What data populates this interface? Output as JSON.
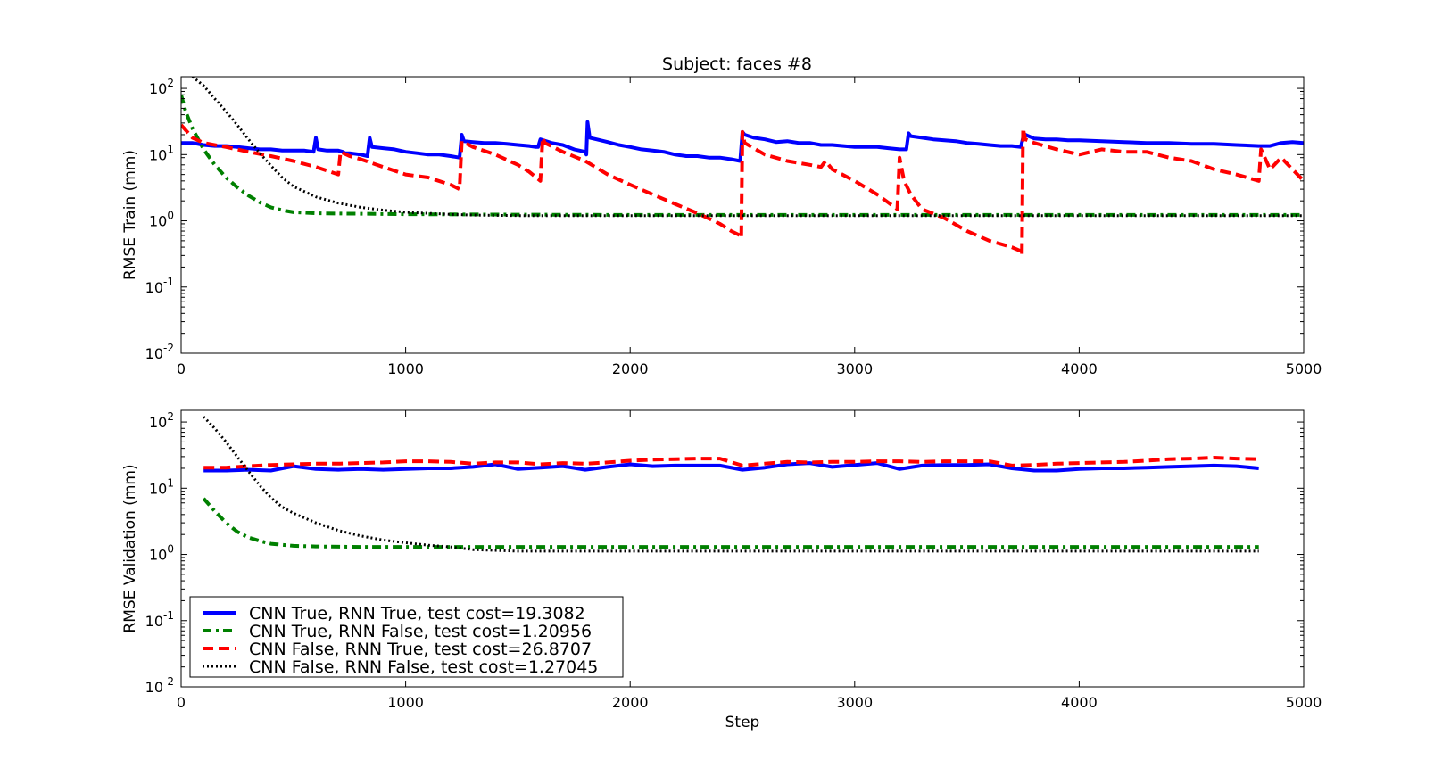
{
  "chart_data": {
    "type": "line",
    "title": "Subject: faces #8",
    "panels": [
      {
        "id": "train",
        "ylabel": "RMSE Train (mm)",
        "xlabel": "",
        "xlim": [
          0,
          5000
        ],
        "ylim": [
          0.01,
          150
        ],
        "yscale": "log",
        "xticks": [
          0,
          1000,
          2000,
          3000,
          4000,
          5000
        ],
        "yticks": [
          {
            "base": "10",
            "exp": "-2",
            "value": 0.01
          },
          {
            "base": "10",
            "exp": "-1",
            "value": 0.1
          },
          {
            "base": "10",
            "exp": "0",
            "value": 1
          },
          {
            "base": "10",
            "exp": "1",
            "value": 10
          },
          {
            "base": "10",
            "exp": "2",
            "value": 100
          }
        ],
        "grid": false,
        "series": [
          {
            "color": "#0000ff",
            "style": "solid",
            "x": [
              0,
              50,
              100,
              150,
              200,
              250,
              300,
              350,
              400,
              450,
              500,
              550,
              590,
              600,
              610,
              650,
              700,
              720,
              730,
              750,
              800,
              830,
              840,
              850,
              900,
              950,
              1000,
              1050,
              1100,
              1150,
              1200,
              1240,
              1250,
              1260,
              1300,
              1350,
              1400,
              1450,
              1500,
              1550,
              1580,
              1590,
              1600,
              1650,
              1700,
              1750,
              1800,
              1805,
              1810,
              1820,
              1850,
              1900,
              1950,
              2000,
              2050,
              2100,
              2150,
              2200,
              2250,
              2300,
              2350,
              2400,
              2450,
              2490,
              2500,
              2510,
              2550,
              2600,
              2650,
              2700,
              2750,
              2800,
              2850,
              2900,
              2950,
              3000,
              3050,
              3100,
              3150,
              3200,
              3230,
              3240,
              3250,
              3300,
              3350,
              3400,
              3450,
              3500,
              3550,
              3600,
              3650,
              3700,
              3740,
              3750,
              3760,
              3800,
              3850,
              3900,
              3950,
              4000,
              4100,
              4200,
              4300,
              4400,
              4500,
              4600,
              4700,
              4800,
              4850,
              4900,
              4950,
              5000
            ],
            "y": [
              15,
              15,
              14,
              13.5,
              13.5,
              13,
              12.5,
              12,
              12,
              11.5,
              11.5,
              11.5,
              11,
              18,
              12,
              11.5,
              11.5,
              11,
              10.5,
              10.5,
              10,
              9.5,
              18,
              13,
              12.5,
              12,
              11,
              10.5,
              10,
              10,
              9.5,
              9,
              20,
              16,
              15.5,
              15,
              15,
              14.5,
              14,
              13.5,
              13,
              13,
              17,
              15,
              14,
              12,
              11,
              10,
              31,
              18,
              17,
              15.5,
              14,
              13,
              12,
              11.5,
              11,
              10,
              9.5,
              9.5,
              9,
              9,
              8.5,
              8,
              22,
              20,
              18,
              17,
              15.5,
              16,
              15,
              15,
              14,
              14,
              13.5,
              13,
              13,
              13,
              12.5,
              12,
              12,
              21,
              19,
              18,
              17,
              16.5,
              16,
              15,
              14.5,
              14,
              13.5,
              13.5,
              13,
              18,
              20,
              17.5,
              17,
              17,
              16.5,
              16.5,
              16,
              15.5,
              15,
              15,
              14.5,
              14.5,
              14,
              13.5,
              13.5,
              15,
              15.5,
              15
            ]
          },
          {
            "color": "#008000",
            "style": "dashdot",
            "x": [
              0,
              20,
              50,
              100,
              150,
              200,
              250,
              300,
              350,
              400,
              450,
              500,
              600,
              800,
              1000,
              1500,
              2000,
              3000,
              4000,
              5000
            ],
            "y": [
              80,
              45,
              25,
              12,
              7,
              4.5,
              3.2,
              2.4,
              1.9,
              1.6,
              1.45,
              1.35,
              1.3,
              1.28,
              1.26,
              1.24,
              1.23,
              1.23,
              1.23,
              1.23
            ]
          },
          {
            "color": "#ff0000",
            "style": "dashed",
            "x": [
              0,
              50,
              100,
              200,
              300,
              400,
              500,
              600,
              700,
              710,
              750,
              800,
              900,
              1000,
              1100,
              1200,
              1240,
              1250,
              1300,
              1400,
              1500,
              1550,
              1600,
              1610,
              1620,
              1700,
              1800,
              1900,
              2000,
              2100,
              2200,
              2300,
              2400,
              2450,
              2490,
              2495,
              2500,
              2510,
              2600,
              2700,
              2800,
              2850,
              2870,
              2900,
              3000,
              3100,
              3190,
              3200,
              3210,
              3220,
              3250,
              3300,
              3400,
              3500,
              3600,
              3700,
              3740,
              3745,
              3750,
              3760,
              3800,
              3900,
              4000,
              4100,
              4200,
              4300,
              4400,
              4500,
              4600,
              4700,
              4800,
              4810,
              4850,
              4900,
              4950,
              5000
            ],
            "y": [
              28,
              18,
              15,
              13,
              11,
              9.5,
              8,
              6.5,
              5,
              11,
              9.5,
              8.5,
              6.5,
              5,
              4.5,
              3.5,
              3,
              16,
              13,
              10,
              7,
              5.5,
              4,
              18,
              15,
              11,
              8,
              5,
              3.5,
              2.5,
              1.8,
              1.3,
              0.9,
              0.7,
              0.6,
              0.55,
              22,
              15,
              10,
              8,
              7,
              6.5,
              8,
              6,
              4,
              2.5,
              1.5,
              9,
              6,
              4,
              2.5,
              1.5,
              1.1,
              0.7,
              0.5,
              0.4,
              0.35,
              0.3,
              25,
              17,
              15,
              12,
              10,
              12,
              11,
              11,
              9,
              8,
              6,
              5,
              4,
              12,
              6,
              9,
              6,
              4
            ]
          },
          {
            "color": "#000000",
            "style": "dotted",
            "x": [
              50,
              100,
              150,
              200,
              250,
              300,
              350,
              400,
              450,
              500,
              600,
              700,
              800,
              900,
              1000,
              1100,
              1200,
              1300,
              1500,
              2000,
              3000,
              4000,
              5000
            ],
            "y": [
              150,
              110,
              70,
              45,
              28,
              17,
              10.5,
              6.8,
              4.5,
              3.3,
              2.3,
              1.85,
              1.6,
              1.45,
              1.35,
              1.3,
              1.25,
              1.22,
              1.2,
              1.2,
              1.2,
              1.2,
              1.2
            ]
          }
        ]
      },
      {
        "id": "validation",
        "ylabel": "RMSE Validation (mm)",
        "xlabel": "Step",
        "xlim": [
          0,
          5000
        ],
        "ylim": [
          0.01,
          150
        ],
        "yscale": "log",
        "xticks": [
          0,
          1000,
          2000,
          3000,
          4000,
          5000
        ],
        "yticks": [
          {
            "base": "10",
            "exp": "-2",
            "value": 0.01
          },
          {
            "base": "10",
            "exp": "-1",
            "value": 0.1
          },
          {
            "base": "10",
            "exp": "0",
            "value": 1
          },
          {
            "base": "10",
            "exp": "1",
            "value": 10
          },
          {
            "base": "10",
            "exp": "2",
            "value": 100
          }
        ],
        "grid": false,
        "legend_position": "lower-left",
        "series": [
          {
            "name": "CNN True, RNN True, test cost=19.3082",
            "color": "#0000ff",
            "style": "solid",
            "x": [
              100,
              200,
              300,
              400,
              500,
              600,
              700,
              800,
              900,
              1000,
              1100,
              1200,
              1300,
              1400,
              1500,
              1600,
              1700,
              1800,
              1900,
              2000,
              2100,
              2200,
              2300,
              2400,
              2500,
              2600,
              2700,
              2800,
              2900,
              3000,
              3100,
              3200,
              3300,
              3400,
              3500,
              3600,
              3700,
              3800,
              3900,
              4000,
              4100,
              4200,
              4300,
              4400,
              4500,
              4600,
              4700,
              4800
            ],
            "y": [
              18.5,
              18.5,
              19,
              18.5,
              21.5,
              19.5,
              19,
              19.5,
              19,
              19.5,
              20,
              20,
              21,
              23,
              19.5,
              20.5,
              21.5,
              19,
              21,
              23,
              21.5,
              22,
              22,
              22,
              19,
              20.5,
              23,
              24,
              21,
              22.5,
              24,
              19.5,
              22,
              22.5,
              22.5,
              23,
              20,
              18.5,
              18.5,
              19.5,
              20,
              20,
              20.5,
              21,
              21.5,
              22,
              21.5,
              20
            ]
          },
          {
            "name": "CNN True, RNN False, test cost=1.20956",
            "color": "#008000",
            "style": "dashdot",
            "x": [
              100,
              150,
              200,
              250,
              300,
              350,
              400,
              500,
              600,
              800,
              1000,
              1500,
              2000,
              3000,
              4000,
              4800
            ],
            "y": [
              7,
              4.5,
              3,
              2.2,
              1.8,
              1.6,
              1.45,
              1.35,
              1.32,
              1.3,
              1.3,
              1.3,
              1.3,
              1.3,
              1.3,
              1.3
            ]
          },
          {
            "name": "CNN False, RNN True, test cost=26.8707",
            "color": "#ff0000",
            "style": "dashed",
            "x": [
              100,
              200,
              300,
              400,
              500,
              600,
              700,
              800,
              900,
              1000,
              1100,
              1200,
              1300,
              1400,
              1500,
              1600,
              1700,
              1800,
              1900,
              2000,
              2100,
              2200,
              2300,
              2400,
              2500,
              2600,
              2700,
              2800,
              2900,
              3000,
              3100,
              3200,
              3300,
              3400,
              3500,
              3600,
              3700,
              3800,
              3900,
              4000,
              4100,
              4200,
              4300,
              4400,
              4500,
              4600,
              4700,
              4800
            ],
            "y": [
              20.5,
              20.5,
              21.5,
              22.5,
              23,
              23.5,
              23.5,
              24,
              24.5,
              25.5,
              25.5,
              25,
              23.5,
              24.5,
              24.5,
              23,
              24,
              23.5,
              24.5,
              26,
              27,
              27.5,
              28,
              28,
              22,
              23.5,
              25,
              24.5,
              25,
              25,
              25.5,
              25.5,
              25,
              25.5,
              25.5,
              25.5,
              22,
              22.5,
              23.5,
              24,
              24.5,
              25,
              26,
              27.5,
              28,
              29,
              28,
              27.5
            ]
          },
          {
            "name": "CNN False, RNN False, test cost=1.27045",
            "color": "#000000",
            "style": "dotted",
            "x": [
              100,
              150,
              200,
              250,
              300,
              350,
              400,
              450,
              500,
              600,
              700,
              800,
              900,
              1000,
              1100,
              1200,
              1300,
              1500,
              2000,
              3000,
              4000,
              4800
            ],
            "y": [
              120,
              80,
              50,
              30,
              18,
              11,
              7.2,
              5.2,
              4.2,
              3,
              2.3,
              1.9,
              1.65,
              1.5,
              1.38,
              1.3,
              1.18,
              1.12,
              1.12,
              1.12,
              1.12,
              1.12
            ]
          }
        ]
      }
    ]
  }
}
